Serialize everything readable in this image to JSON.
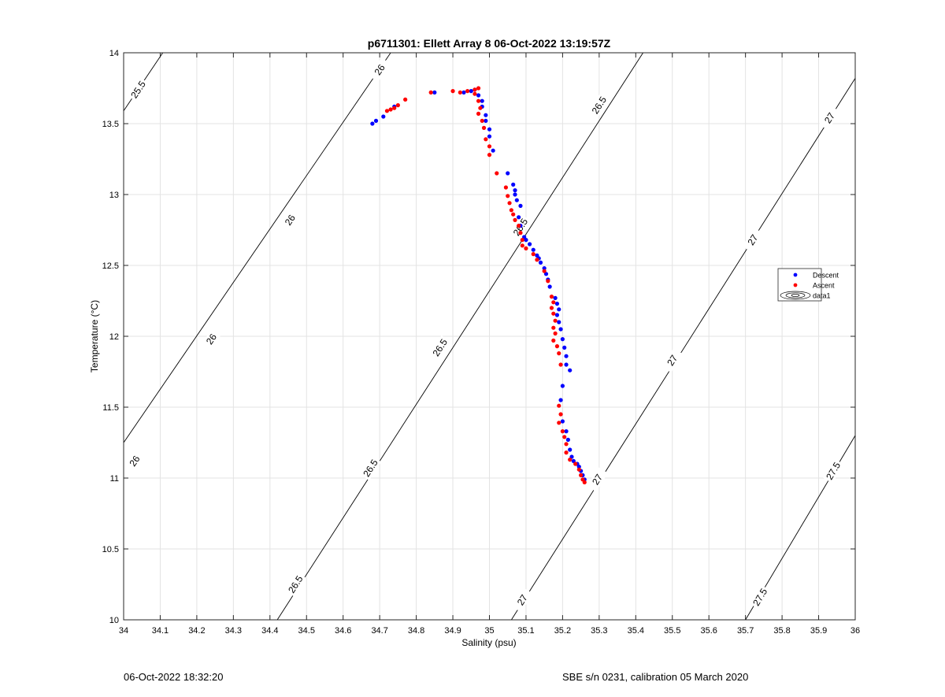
{
  "chart_data": {
    "type": "scatter",
    "title": "p6711301: Ellett Array 8 06-Oct-2022 13:19:57Z",
    "xlabel": "Salinity (psu)",
    "ylabel": "Temperature (°C)",
    "xlim": [
      34,
      36
    ],
    "ylim": [
      10,
      14
    ],
    "xticks": [
      "34",
      "34.1",
      "34.2",
      "34.3",
      "34.4",
      "34.5",
      "34.6",
      "34.7",
      "34.8",
      "34.9",
      "35",
      "35.1",
      "35.2",
      "35.3",
      "35.4",
      "35.5",
      "35.6",
      "35.7",
      "35.8",
      "35.9",
      "36"
    ],
    "yticks": [
      "10",
      "10.5",
      "11",
      "11.5",
      "12",
      "12.5",
      "13",
      "13.5",
      "14"
    ],
    "grid": true,
    "legend_placement": "right",
    "colors": {
      "descent": "#0000ff",
      "ascent": "#ff0000",
      "contour": "#000000",
      "grid": "#e3e3e3"
    },
    "series": [
      {
        "name": "Descent",
        "points": [
          [
            34.68,
            13.5
          ],
          [
            34.69,
            13.52
          ],
          [
            34.71,
            13.55
          ],
          [
            34.74,
            13.62
          ],
          [
            34.85,
            13.72
          ],
          [
            34.93,
            13.72
          ],
          [
            34.95,
            13.73
          ],
          [
            34.96,
            13.74
          ],
          [
            34.97,
            13.7
          ],
          [
            34.98,
            13.66
          ],
          [
            34.98,
            13.62
          ],
          [
            34.99,
            13.56
          ],
          [
            34.99,
            13.52
          ],
          [
            35.0,
            13.46
          ],
          [
            35.0,
            13.41
          ],
          [
            35.01,
            13.31
          ],
          [
            35.05,
            13.15
          ],
          [
            35.065,
            13.07
          ],
          [
            35.07,
            13.03
          ],
          [
            35.07,
            13.0
          ],
          [
            35.075,
            12.96
          ],
          [
            35.085,
            12.92
          ],
          [
            35.08,
            12.84
          ],
          [
            35.085,
            12.78
          ],
          [
            35.095,
            12.7
          ],
          [
            35.1,
            12.68
          ],
          [
            35.11,
            12.65
          ],
          [
            35.12,
            12.61
          ],
          [
            35.13,
            12.57
          ],
          [
            35.135,
            12.55
          ],
          [
            35.14,
            12.52
          ],
          [
            35.15,
            12.48
          ],
          [
            35.155,
            12.44
          ],
          [
            35.16,
            12.4
          ],
          [
            35.165,
            12.35
          ],
          [
            35.18,
            12.27
          ],
          [
            35.185,
            12.23
          ],
          [
            35.19,
            12.19
          ],
          [
            35.185,
            12.15
          ],
          [
            35.19,
            12.1
          ],
          [
            35.195,
            12.05
          ],
          [
            35.2,
            11.98
          ],
          [
            35.205,
            11.92
          ],
          [
            35.21,
            11.86
          ],
          [
            35.21,
            11.8
          ],
          [
            35.22,
            11.76
          ],
          [
            35.2,
            11.65
          ],
          [
            35.195,
            11.55
          ],
          [
            35.2,
            11.4
          ],
          [
            35.21,
            11.33
          ],
          [
            35.215,
            11.27
          ],
          [
            35.22,
            11.2
          ],
          [
            35.225,
            11.15
          ],
          [
            35.23,
            11.12
          ],
          [
            35.24,
            11.1
          ],
          [
            35.245,
            11.08
          ],
          [
            35.25,
            11.05
          ],
          [
            35.255,
            11.02
          ],
          [
            35.26,
            10.99
          ]
        ]
      },
      {
        "name": "Ascent",
        "points": [
          [
            34.72,
            13.59
          ],
          [
            34.73,
            13.6
          ],
          [
            34.74,
            13.61
          ],
          [
            34.75,
            13.63
          ],
          [
            34.77,
            13.67
          ],
          [
            34.84,
            13.72
          ],
          [
            34.9,
            13.73
          ],
          [
            34.92,
            13.72
          ],
          [
            34.94,
            13.73
          ],
          [
            34.96,
            13.74
          ],
          [
            34.97,
            13.75
          ],
          [
            34.96,
            13.71
          ],
          [
            34.97,
            13.66
          ],
          [
            34.975,
            13.61
          ],
          [
            34.97,
            13.57
          ],
          [
            34.98,
            13.52
          ],
          [
            34.985,
            13.47
          ],
          [
            34.99,
            13.39
          ],
          [
            35.0,
            13.34
          ],
          [
            35.0,
            13.28
          ],
          [
            35.02,
            13.15
          ],
          [
            35.045,
            13.05
          ],
          [
            35.05,
            12.99
          ],
          [
            35.055,
            12.94
          ],
          [
            35.06,
            12.89
          ],
          [
            35.065,
            12.86
          ],
          [
            35.07,
            12.82
          ],
          [
            35.08,
            12.78
          ],
          [
            35.085,
            12.73
          ],
          [
            35.09,
            12.68
          ],
          [
            35.09,
            12.64
          ],
          [
            35.1,
            12.62
          ],
          [
            35.12,
            12.58
          ],
          [
            35.13,
            12.54
          ],
          [
            35.15,
            12.46
          ],
          [
            35.16,
            12.39
          ],
          [
            35.17,
            12.28
          ],
          [
            35.175,
            12.24
          ],
          [
            35.17,
            12.2
          ],
          [
            35.175,
            12.16
          ],
          [
            35.18,
            12.11
          ],
          [
            35.175,
            12.06
          ],
          [
            35.18,
            12.02
          ],
          [
            35.175,
            11.97
          ],
          [
            35.185,
            11.93
          ],
          [
            35.19,
            11.88
          ],
          [
            35.195,
            11.8
          ],
          [
            35.19,
            11.51
          ],
          [
            35.195,
            11.45
          ],
          [
            35.19,
            11.39
          ],
          [
            35.2,
            11.33
          ],
          [
            35.205,
            11.29
          ],
          [
            35.21,
            11.24
          ],
          [
            35.21,
            11.18
          ],
          [
            35.22,
            11.13
          ],
          [
            35.235,
            11.1
          ],
          [
            35.245,
            11.06
          ],
          [
            35.25,
            11.02
          ],
          [
            35.255,
            10.99
          ],
          [
            35.26,
            10.97
          ]
        ]
      }
    ],
    "contours": [
      {
        "value": "25.5",
        "lines": [
          [
            [
              34.0,
              13.59
            ],
            [
              34.107,
              14.0
            ]
          ]
        ],
        "labels": [
          {
            "text": "25.5",
            "at": [
              34.04,
              13.74
            ]
          }
        ]
      },
      {
        "value": "26",
        "lines": [
          [
            [
              34.0,
              11.25
            ],
            [
              34.73,
              14.0
            ]
          ]
        ],
        "labels": [
          {
            "text": "26",
            "at": [
              34.03,
              11.12
            ]
          },
          {
            "text": "26",
            "at": [
              34.24,
              11.98
            ]
          },
          {
            "text": "26",
            "at": [
              34.455,
              12.82
            ]
          },
          {
            "text": "26",
            "at": [
              34.7,
              13.88
            ]
          }
        ]
      },
      {
        "value": "26.5",
        "lines": [
          [
            [
              34.42,
              10.0
            ],
            [
              35.42,
              14.0
            ]
          ]
        ],
        "labels": [
          {
            "text": "26.5",
            "at": [
              34.47,
              10.25
            ]
          },
          {
            "text": "26.5",
            "at": [
              34.675,
              11.07
            ]
          },
          {
            "text": "26.5",
            "at": [
              34.865,
              11.92
            ]
          },
          {
            "text": "26.5",
            "at": [
              35.085,
              12.77
            ]
          },
          {
            "text": "26.5",
            "at": [
              35.3,
              13.63
            ]
          }
        ]
      },
      {
        "value": "27",
        "lines": [
          [
            [
              35.06,
              10.0
            ],
            [
              36.0,
              13.82
            ]
          ]
        ],
        "labels": [
          {
            "text": "27",
            "at": [
              35.09,
              10.14
            ]
          },
          {
            "text": "27",
            "at": [
              35.295,
              10.99
            ]
          },
          {
            "text": "27",
            "at": [
              35.5,
              11.83
            ]
          },
          {
            "text": "27",
            "at": [
              35.72,
              12.68
            ]
          },
          {
            "text": "27",
            "at": [
              35.93,
              13.54
            ]
          }
        ]
      },
      {
        "value": "27.5",
        "lines": [
          [
            [
              35.7,
              10.0
            ],
            [
              36.0,
              11.3
            ]
          ]
        ],
        "labels": [
          {
            "text": "27.5",
            "at": [
              35.74,
              10.16
            ]
          },
          {
            "text": "27.5",
            "at": [
              35.94,
              11.05
            ]
          }
        ]
      }
    ],
    "legend": [
      {
        "label": "Descent",
        "marker": "dot",
        "color": "#0000ff"
      },
      {
        "label": "Ascent",
        "marker": "dot",
        "color": "#ff0000"
      },
      {
        "label": "data1",
        "marker": "contour",
        "color": "#000000"
      }
    ]
  },
  "footer": {
    "left": "06-Oct-2022 18:32:20",
    "right": "SBE s/n 0231, calibration 05 March 2020"
  }
}
